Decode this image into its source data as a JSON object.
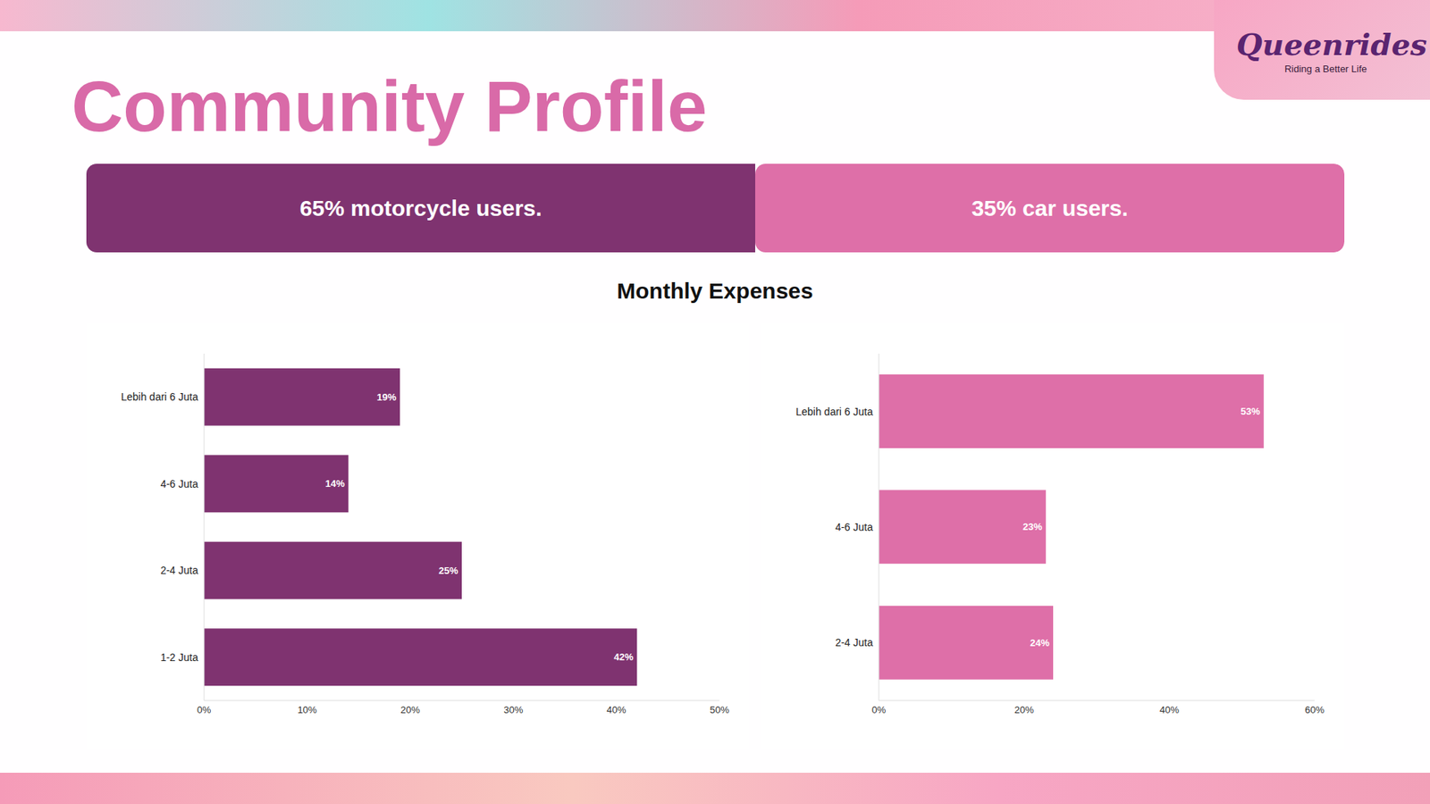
{
  "title": "Community Profile",
  "logo": {
    "name": "Queenrides",
    "tagline": "Riding a Better Life"
  },
  "banner": [
    "65% motorcycle users.",
    "35% car users."
  ],
  "section_title": "Monthly Expenses",
  "chart_data": [
    {
      "type": "bar",
      "orientation": "horizontal",
      "categories": [
        "Lebih dari 6 Juta",
        "4-6 Juta",
        "2-4 Juta",
        "1-2 Juta"
      ],
      "values": [
        19,
        14,
        25,
        42
      ],
      "value_labels": [
        "19%",
        "14%",
        "25%",
        "42%"
      ],
      "data_labels": true,
      "color": "#7f3370",
      "xlim": [
        0,
        50
      ],
      "xticks": [
        {
          "value": 0,
          "label": "0%"
        },
        {
          "value": 10,
          "label": "10%"
        },
        {
          "value": 20,
          "label": "20%"
        },
        {
          "value": 30,
          "label": "30%"
        },
        {
          "value": 40,
          "label": "40%"
        },
        {
          "value": 50,
          "label": "50%"
        }
      ],
      "grid": false
    },
    {
      "type": "bar",
      "orientation": "horizontal",
      "categories": [
        "Lebih dari 6 Juta",
        "4-6 Juta",
        "2-4 Juta"
      ],
      "values": [
        53,
        23,
        24
      ],
      "value_labels": [
        "53%",
        "23%",
        "24%"
      ],
      "data_labels": true,
      "color": "#de6fa8",
      "xlim": [
        0,
        60
      ],
      "xticks": [
        {
          "value": 0,
          "label": "0%"
        },
        {
          "value": 20,
          "label": "20%"
        },
        {
          "value": 40,
          "label": "40%"
        },
        {
          "value": 60,
          "label": "60%"
        }
      ],
      "grid": false
    }
  ]
}
